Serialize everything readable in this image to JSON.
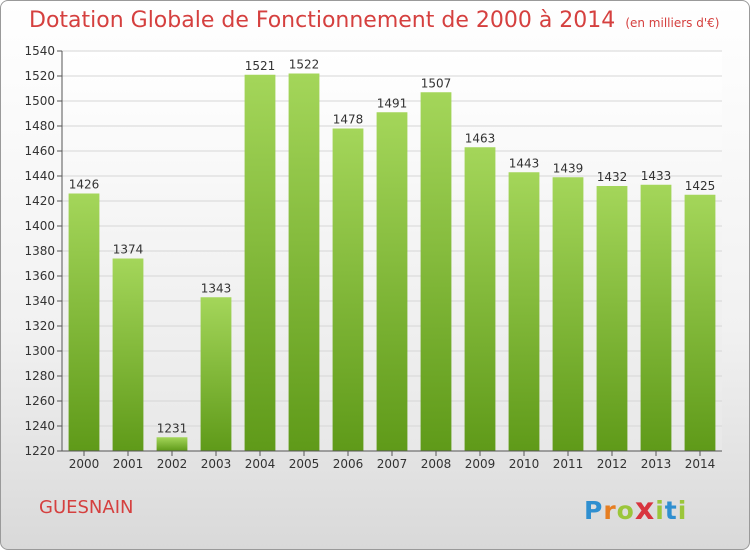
{
  "title": "Dotation Globale de Fonctionnement de 2000 à 2014",
  "subtitle": "(en milliers d'€)",
  "commune": "GUESNAIN",
  "logo": {
    "text": "Proxiti",
    "letters": [
      "P",
      "r",
      "o",
      "x",
      "i",
      "t",
      "i"
    ],
    "colors": [
      "#2f8fd0",
      "#e67e22",
      "#9bc63a",
      "#d8353f",
      "#9bc63a",
      "#2f8fd0",
      "#9bc63a"
    ]
  },
  "colors": {
    "title": "#d5403f",
    "bar_top": "#a4d65a",
    "bar_bottom": "#5f9a19"
  },
  "chart_data": {
    "type": "bar",
    "categories": [
      "2000",
      "2001",
      "2002",
      "2003",
      "2004",
      "2005",
      "2006",
      "2007",
      "2008",
      "2009",
      "2010",
      "2011",
      "2012",
      "2013",
      "2014"
    ],
    "values": [
      1426,
      1374,
      1231,
      1343,
      1521,
      1522,
      1478,
      1491,
      1507,
      1463,
      1443,
      1439,
      1432,
      1433,
      1425
    ],
    "value_labels": [
      "1426",
      "1374",
      "1231",
      "1343",
      "1521",
      "1522",
      "1478",
      "1491",
      "1507",
      "1463",
      "1443",
      "1439",
      "1432",
      "1433",
      "1425"
    ],
    "ylim": [
      1220,
      1540
    ],
    "yticks": [
      1220,
      1240,
      1260,
      1280,
      1300,
      1320,
      1340,
      1360,
      1380,
      1400,
      1420,
      1440,
      1460,
      1480,
      1500,
      1520,
      1540
    ],
    "ytick_labels": [
      "1220",
      "1240",
      "1260",
      "1280",
      "1300",
      "1320",
      "1340",
      "1360",
      "1380",
      "1400",
      "1420",
      "1440",
      "1460",
      "1480",
      "1500",
      "1520",
      "1540"
    ],
    "grid": true,
    "legend": "none"
  }
}
